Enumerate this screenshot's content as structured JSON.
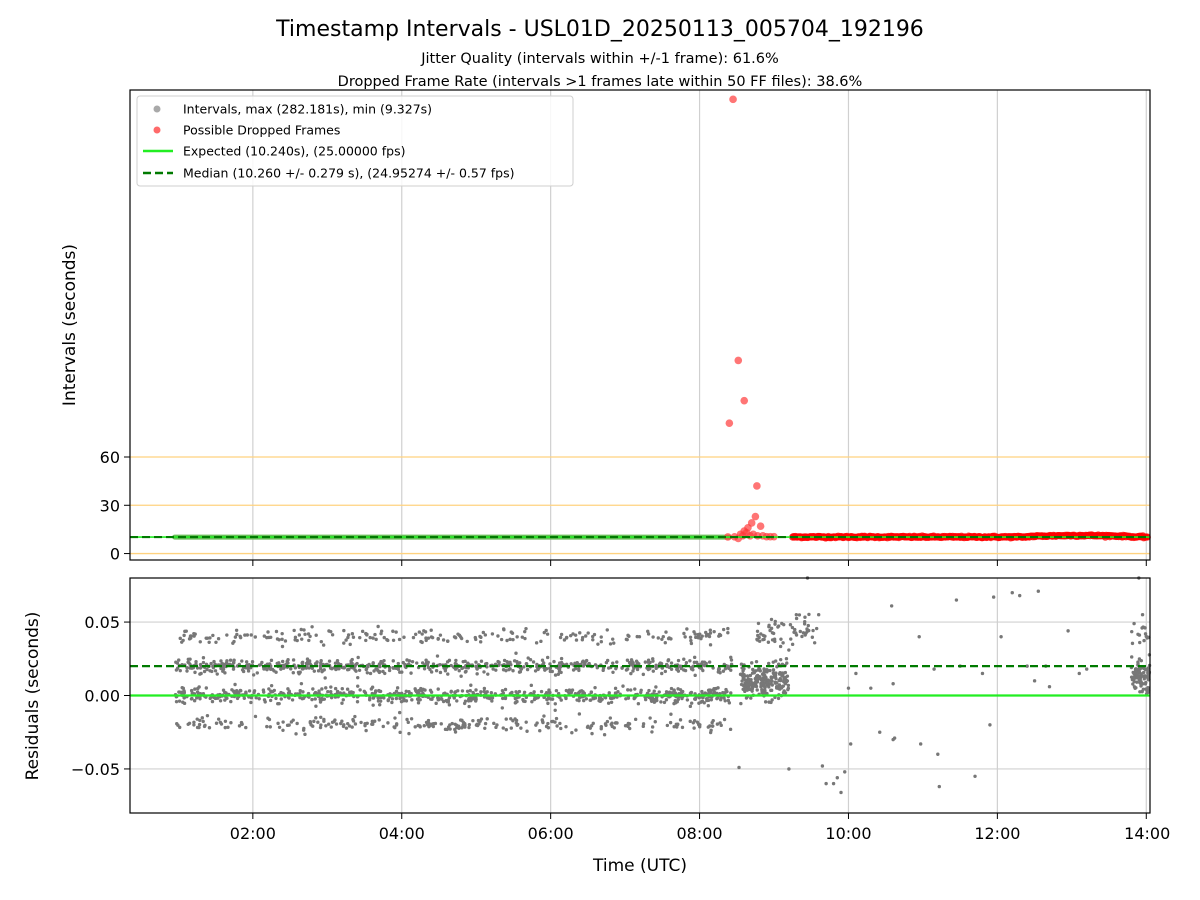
{
  "chart_data": [
    {
      "type": "scatter",
      "panel": "top",
      "title": "Timestamp Intervals - USL01D_20250113_005704_192196",
      "subtitle_lines": [
        "Jitter Quality (intervals within +/-1 frame): 61.6%",
        "Dropped Frame Rate (intervals >1 frames late within 50 FF files): 38.6%"
      ],
      "ylabel": "Intervals (seconds)",
      "xlim_hours": [
        0.35,
        14.05
      ],
      "ylim": [
        -4,
        288
      ],
      "y_ticks": [
        0,
        30,
        60
      ],
      "y_tick_labels": [
        "0",
        "30",
        "60"
      ],
      "reference_lines": [
        0,
        30,
        60
      ],
      "reference_line_color": "#ffd27f",
      "expected_interval": 10.24,
      "median_interval": 10.26,
      "legend": {
        "placement": "top-left",
        "entries": [
          {
            "label": "Intervals, max (282.181s), min (9.327s)",
            "kind": "dot",
            "color": "#a0a0a0"
          },
          {
            "label": "Possible Dropped Frames",
            "kind": "dot",
            "color": "#ff5a5a"
          },
          {
            "label": "Expected (10.240s), (25.00000 fps)",
            "kind": "line",
            "color": "#22ee22"
          },
          {
            "label": "Median (10.260 +/- 0.279 s), (24.95274 +/- 0.57 fps)",
            "kind": "dash",
            "color": "#007a00"
          }
        ]
      },
      "normal_segment": {
        "x_start": 0.95,
        "x_end": 8.4,
        "y": 10.24,
        "color": "#6abf5a"
      },
      "dropped_band": {
        "x_start": 9.25,
        "x_end": 14.02,
        "y_base": 10.3,
        "color": "#ff0000"
      },
      "dropped_points": [
        {
          "x": 8.45,
          "y": 282.2
        },
        {
          "x": 8.52,
          "y": 120
        },
        {
          "x": 8.6,
          "y": 95
        },
        {
          "x": 8.4,
          "y": 81
        },
        {
          "x": 8.77,
          "y": 42
        },
        {
          "x": 8.75,
          "y": 23
        },
        {
          "x": 8.82,
          "y": 17
        },
        {
          "x": 8.7,
          "y": 19
        },
        {
          "x": 8.65,
          "y": 16
        },
        {
          "x": 8.6,
          "y": 14
        },
        {
          "x": 8.55,
          "y": 12
        },
        {
          "x": 8.58,
          "y": 11
        },
        {
          "x": 8.63,
          "y": 13
        },
        {
          "x": 8.68,
          "y": 11
        },
        {
          "x": 8.72,
          "y": 12
        },
        {
          "x": 8.78,
          "y": 11
        },
        {
          "x": 8.85,
          "y": 11
        },
        {
          "x": 8.9,
          "y": 10.5
        },
        {
          "x": 8.95,
          "y": 10.5
        },
        {
          "x": 9.0,
          "y": 10.5
        },
        {
          "x": 8.38,
          "y": 10.3
        },
        {
          "x": 8.47,
          "y": 10.4
        },
        {
          "x": 8.52,
          "y": 9.4
        }
      ]
    },
    {
      "type": "scatter",
      "panel": "bottom",
      "xlabel": "Time (UTC)",
      "ylabel": "Residuals (seconds)",
      "xlim_hours": [
        0.35,
        14.05
      ],
      "ylim": [
        -0.08,
        0.08
      ],
      "x_ticks_hours": [
        2,
        4,
        6,
        8,
        10,
        12,
        14
      ],
      "x_tick_labels": [
        "02:00",
        "04:00",
        "06:00",
        "08:00",
        "10:00",
        "12:00",
        "14:00"
      ],
      "y_ticks": [
        -0.05,
        0.0,
        0.05
      ],
      "y_tick_labels": [
        "−0.05",
        "0.00",
        "0.05"
      ],
      "expected_line": {
        "y": 0.0,
        "color": "#22ee22"
      },
      "median_line": {
        "y": 0.02,
        "color": "#007a00"
      },
      "point_color": "#777777",
      "clusters": [
        {
          "x_start": 0.95,
          "x_end": 8.45,
          "levels": [
            0.0,
            0.02,
            -0.02,
            0.04
          ],
          "counts": [
            700,
            620,
            260,
            220
          ],
          "spread": 0.0025
        },
        {
          "x_start": 8.55,
          "x_end": 9.2,
          "levels": [
            0.01
          ],
          "counts": [
            220
          ],
          "spread": 0.006
        },
        {
          "x_start": 8.75,
          "x_end": 9.6,
          "levels": [
            0.045
          ],
          "counts": [
            60
          ],
          "spread": 0.006
        },
        {
          "x_start": 13.8,
          "x_end": 14.05,
          "levels": [
            0.012,
            0.045
          ],
          "counts": [
            90,
            14
          ],
          "spread": 0.006
        }
      ],
      "sparse_points": [
        {
          "x": 9.6,
          "y": 0.055
        },
        {
          "x": 9.65,
          "y": -0.048
        },
        {
          "x": 9.7,
          "y": -0.06
        },
        {
          "x": 9.8,
          "y": -0.06
        },
        {
          "x": 9.85,
          "y": -0.056
        },
        {
          "x": 9.9,
          "y": -0.066
        },
        {
          "x": 9.95,
          "y": -0.052
        },
        {
          "x": 10.03,
          "y": -0.033
        },
        {
          "x": 10.0,
          "y": 0.005
        },
        {
          "x": 10.3,
          "y": 0.005
        },
        {
          "x": 10.6,
          "y": 0.008
        },
        {
          "x": 10.42,
          "y": -0.025
        },
        {
          "x": 10.58,
          "y": 0.061
        },
        {
          "x": 10.6,
          "y": -0.03
        },
        {
          "x": 10.62,
          "y": -0.029
        },
        {
          "x": 10.95,
          "y": 0.04
        },
        {
          "x": 10.97,
          "y": -0.033
        },
        {
          "x": 11.2,
          "y": -0.04
        },
        {
          "x": 11.22,
          "y": -0.062
        },
        {
          "x": 11.45,
          "y": 0.065
        },
        {
          "x": 11.7,
          "y": -0.055
        },
        {
          "x": 11.5,
          "y": 0.02
        },
        {
          "x": 11.8,
          "y": 0.015
        },
        {
          "x": 11.9,
          "y": -0.02
        },
        {
          "x": 11.95,
          "y": 0.067
        },
        {
          "x": 12.05,
          "y": 0.04
        },
        {
          "x": 12.2,
          "y": 0.07
        },
        {
          "x": 12.3,
          "y": 0.068
        },
        {
          "x": 12.4,
          "y": 0.02
        },
        {
          "x": 12.5,
          "y": 0.01
        },
        {
          "x": 12.55,
          "y": 0.071
        },
        {
          "x": 12.7,
          "y": 0.006
        },
        {
          "x": 12.95,
          "y": 0.044
        },
        {
          "x": 13.1,
          "y": 0.015
        },
        {
          "x": 9.45,
          "y": 0.08
        },
        {
          "x": 9.2,
          "y": -0.05
        },
        {
          "x": 8.53,
          "y": -0.049
        },
        {
          "x": 8.4,
          "y": -0.005
        },
        {
          "x": 9.3,
          "y": 0.055
        },
        {
          "x": 13.9,
          "y": 0.08
        },
        {
          "x": 13.95,
          "y": 0.055
        },
        {
          "x": 10.1,
          "y": 0.015
        },
        {
          "x": 11.15,
          "y": 0.018
        },
        {
          "x": 12.65,
          "y": 0.02
        },
        {
          "x": 13.2,
          "y": 0.018
        }
      ]
    }
  ]
}
